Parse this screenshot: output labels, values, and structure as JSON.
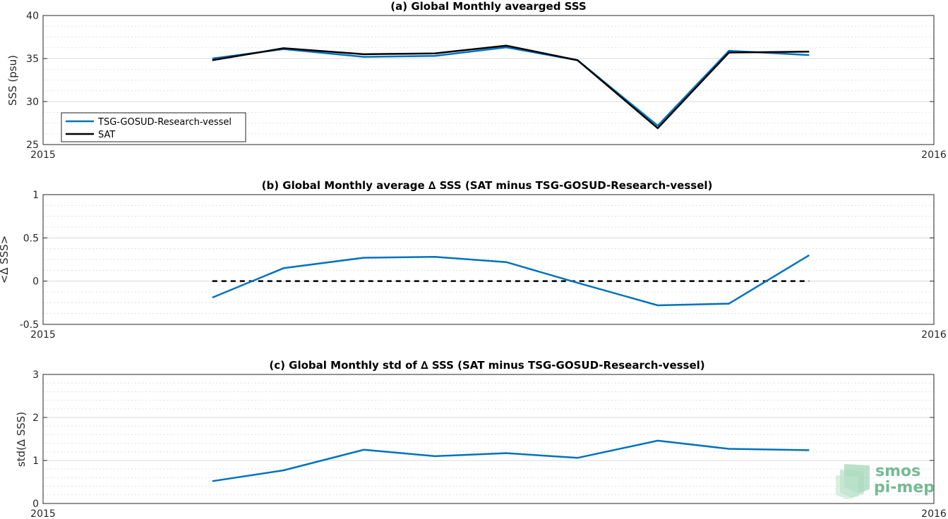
{
  "colors": {
    "tsg": "#0072bd",
    "sat": "#000000",
    "grid": "#d9d9d9",
    "axis": "#262626",
    "logo": "#5fae82"
  },
  "logo": {
    "line1": "smos",
    "line2": "pi-mep"
  },
  "chart_data": [
    {
      "type": "line",
      "title": "(a) Global Monthly avearged SSS",
      "xlabel": "",
      "ylabel": "SSS (psu)",
      "xlim": [
        2015,
        2016
      ],
      "ylim": [
        25,
        40
      ],
      "xticks": [
        "2015",
        "2016"
      ],
      "yticks": [
        25,
        30,
        35,
        40
      ],
      "grid": true,
      "legend": "bottom-left",
      "x": [
        2015.19,
        2015.27,
        2015.36,
        2015.44,
        2015.52,
        2015.6,
        2015.69,
        2015.77,
        2015.86
      ],
      "series": [
        {
          "name": "TSG-GOSUD-Research-vessel",
          "color": "#0072bd",
          "values": [
            35.0,
            36.1,
            35.2,
            35.3,
            36.3,
            34.8,
            27.2,
            35.9,
            35.4
          ]
        },
        {
          "name": "SAT",
          "color": "#000000",
          "values": [
            34.8,
            36.2,
            35.5,
            35.6,
            36.5,
            34.8,
            26.9,
            35.7,
            35.8
          ]
        }
      ]
    },
    {
      "type": "line",
      "title": "(b) Global Monthly average ∆ SSS (SAT minus TSG-GOSUD-Research-vessel)",
      "xlabel": "",
      "ylabel": "<∆ SSS>",
      "xlim": [
        2015,
        2016
      ],
      "ylim": [
        -0.5,
        1
      ],
      "xticks": [
        "2015",
        "2016"
      ],
      "yticks": [
        -0.5,
        0,
        0.5,
        1
      ],
      "ytick_labels": [
        "-0.5",
        "0",
        "0.5",
        "1"
      ],
      "grid": true,
      "x": [
        2015.19,
        2015.27,
        2015.36,
        2015.44,
        2015.52,
        2015.6,
        2015.69,
        2015.77,
        2015.86
      ],
      "series": [
        {
          "color": "#0072bd",
          "values": [
            -0.19,
            0.15,
            0.27,
            0.28,
            0.22,
            -0.02,
            -0.28,
            -0.26,
            0.3
          ]
        }
      ],
      "reference_line": {
        "y": 0,
        "style": "dashed",
        "color": "#000000",
        "x": [
          2015.19,
          2015.86
        ]
      }
    },
    {
      "type": "line",
      "title": "(c) Global Monthly std of ∆ SSS (SAT minus TSG-GOSUD-Research-vessel)",
      "xlabel": "",
      "ylabel": "std(∆ SSS)",
      "xlim": [
        2015,
        2016
      ],
      "ylim": [
        0,
        3
      ],
      "xticks": [
        "2015",
        "2016"
      ],
      "yticks": [
        0,
        1,
        2,
        3
      ],
      "grid": true,
      "x": [
        2015.19,
        2015.27,
        2015.36,
        2015.44,
        2015.52,
        2015.6,
        2015.69,
        2015.77,
        2015.86
      ],
      "series": [
        {
          "color": "#0072bd",
          "values": [
            0.52,
            0.77,
            1.25,
            1.1,
            1.17,
            1.06,
            1.46,
            1.27,
            1.24
          ]
        }
      ]
    }
  ]
}
